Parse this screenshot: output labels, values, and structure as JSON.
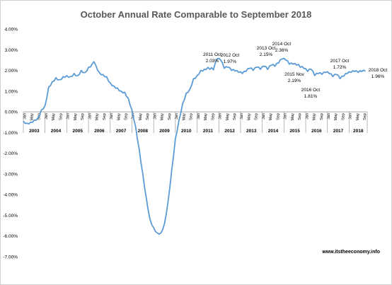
{
  "chart_data": {
    "type": "line",
    "title": "October Annual Rate Comparable to September 2018",
    "xlabel": "",
    "ylabel": "",
    "ylim": [
      -7.0,
      4.0
    ],
    "y_ticks": [
      "4.00%",
      "3.00%",
      "2.00%",
      "1.00%",
      "0.00%",
      "-1.00%",
      "-2.00%",
      "-3.00%",
      "-4.00%",
      "-5.00%",
      "-6.00%",
      "-7.00%"
    ],
    "y_tick_values": [
      4,
      3,
      2,
      1,
      0,
      -1,
      -2,
      -3,
      -4,
      -5,
      -6,
      -7
    ],
    "month_labels": [
      "Jan",
      "May",
      "Sep"
    ],
    "years": [
      "2003",
      "2004",
      "2005",
      "2006",
      "2007",
      "2008",
      "2009",
      "2010",
      "2011",
      "2012",
      "2013",
      "2014",
      "2015",
      "2016",
      "2017",
      "2018"
    ],
    "grid": false,
    "legend": "none",
    "line_color": "#5b9bd5",
    "series": [
      {
        "x_start": "2003-01",
        "x_end": "2018-10",
        "anchors": [
          [
            "2003-01",
            -0.45
          ],
          [
            "2003-03",
            -0.55
          ],
          [
            "2003-05",
            -0.5
          ],
          [
            "2003-07",
            -0.4
          ],
          [
            "2003-09",
            -0.3
          ],
          [
            "2003-11",
            0.1
          ],
          [
            "2004-01",
            0.3
          ],
          [
            "2004-03",
            1.2
          ],
          [
            "2004-05",
            1.45
          ],
          [
            "2004-07",
            1.65
          ],
          [
            "2004-09",
            1.55
          ],
          [
            "2004-11",
            1.7
          ],
          [
            "2005-01",
            1.75
          ],
          [
            "2005-03",
            1.7
          ],
          [
            "2005-05",
            1.85
          ],
          [
            "2005-07",
            1.75
          ],
          [
            "2005-09",
            2.0
          ],
          [
            "2005-11",
            1.9
          ],
          [
            "2006-01",
            2.15
          ],
          [
            "2006-03",
            2.3
          ],
          [
            "2006-04",
            2.42
          ],
          [
            "2006-05",
            2.25
          ],
          [
            "2006-07",
            1.9
          ],
          [
            "2006-09",
            1.8
          ],
          [
            "2006-11",
            1.7
          ],
          [
            "2007-01",
            1.4
          ],
          [
            "2007-03",
            1.25
          ],
          [
            "2007-05",
            1.15
          ],
          [
            "2007-07",
            1.0
          ],
          [
            "2007-09",
            0.95
          ],
          [
            "2007-11",
            0.65
          ],
          [
            "2008-01",
            0.1
          ],
          [
            "2008-03",
            -0.7
          ],
          [
            "2008-05",
            -1.8
          ],
          [
            "2008-07",
            -3.0
          ],
          [
            "2008-09",
            -4.2
          ],
          [
            "2008-11",
            -5.2
          ],
          [
            "2009-01",
            -5.6
          ],
          [
            "2009-03",
            -5.85
          ],
          [
            "2009-05",
            -5.85
          ],
          [
            "2009-07",
            -5.4
          ],
          [
            "2009-09",
            -4.3
          ],
          [
            "2009-11",
            -2.8
          ],
          [
            "2010-01",
            -1.3
          ],
          [
            "2010-03",
            -0.4
          ],
          [
            "2010-05",
            0.4
          ],
          [
            "2010-07",
            0.9
          ],
          [
            "2010-09",
            1.1
          ],
          [
            "2010-11",
            1.6
          ],
          [
            "2011-01",
            1.75
          ],
          [
            "2011-03",
            2.0
          ],
          [
            "2011-05",
            2.05
          ],
          [
            "2011-07",
            2.15
          ],
          [
            "2011-10",
            2.03
          ],
          [
            "2011-12",
            2.55
          ],
          [
            "2012-02",
            2.5
          ],
          [
            "2012-04",
            2.1
          ],
          [
            "2012-06",
            2.15
          ],
          [
            "2012-08",
            2.0
          ],
          [
            "2012-10",
            1.97
          ],
          [
            "2012-12",
            1.9
          ],
          [
            "2013-02",
            1.85
          ],
          [
            "2013-04",
            1.95
          ],
          [
            "2013-06",
            2.1
          ],
          [
            "2013-08",
            2.0
          ],
          [
            "2013-10",
            2.15
          ],
          [
            "2013-12",
            2.05
          ],
          [
            "2014-02",
            2.2
          ],
          [
            "2014-04",
            2.05
          ],
          [
            "2014-06",
            2.25
          ],
          [
            "2014-08",
            2.2
          ],
          [
            "2014-10",
            2.36
          ],
          [
            "2014-12",
            2.55
          ],
          [
            "2015-02",
            2.5
          ],
          [
            "2015-04",
            2.3
          ],
          [
            "2015-06",
            2.3
          ],
          [
            "2015-08",
            2.25
          ],
          [
            "2015-11",
            2.19
          ],
          [
            "2015-12",
            2.1
          ],
          [
            "2016-02",
            1.95
          ],
          [
            "2016-04",
            2.05
          ],
          [
            "2016-06",
            1.75
          ],
          [
            "2016-08",
            1.85
          ],
          [
            "2016-10",
            1.81
          ],
          [
            "2016-12",
            1.9
          ],
          [
            "2017-02",
            1.85
          ],
          [
            "2017-04",
            1.7
          ],
          [
            "2017-06",
            1.8
          ],
          [
            "2017-08",
            1.6
          ],
          [
            "2017-10",
            1.72
          ],
          [
            "2017-12",
            1.85
          ],
          [
            "2018-02",
            1.9
          ],
          [
            "2018-04",
            1.95
          ],
          [
            "2018-06",
            1.9
          ],
          [
            "2018-08",
            1.95
          ],
          [
            "2018-10",
            1.96
          ]
        ]
      }
    ],
    "annotations": [
      {
        "line1": "2011 Oct",
        "line2": "2.03%"
      },
      {
        "line1": "2012 Oct",
        "line2": "1.97%"
      },
      {
        "line1": "2013 Oct",
        "line2": "2.15%"
      },
      {
        "line1": "2014 Oct",
        "line2": "2.36%"
      },
      {
        "line1": "2015 Nov",
        "line2": "2.19%"
      },
      {
        "line1": "2016 Oct",
        "line2": "1.81%"
      },
      {
        "line1": "2017 Oct",
        "line2": "1.72%"
      },
      {
        "line1": "2018 Oct",
        "line2": "1.96%"
      }
    ],
    "watermark": "www.itstheeconomy.info"
  }
}
